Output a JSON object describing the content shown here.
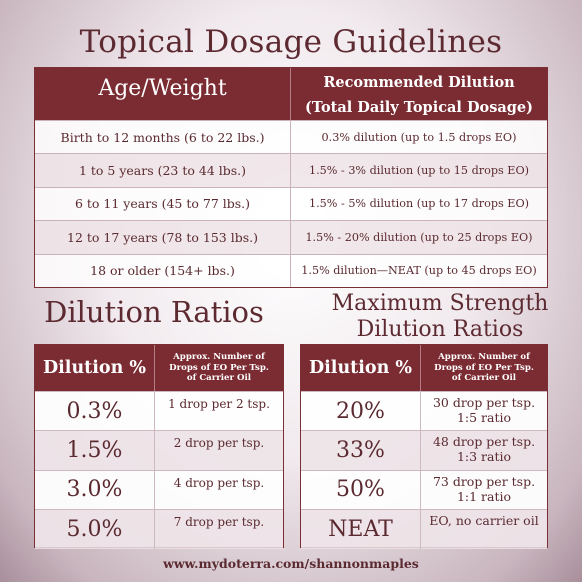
{
  "title": "Topical Dosage Guidelines",
  "topical": {
    "header_age": "Age/Weight",
    "header_dilution_line1": "Recommended Dilution",
    "header_dilution_line2": "(Total Daily Topical Dosage)",
    "rows": [
      {
        "age": "Birth to 12 months (6 to 22 lbs.)",
        "dilution": "0.3% dilution (up to 1.5 drops EO)"
      },
      {
        "age": "1 to 5 years (23 to 44 lbs.)",
        "dilution": "1.5% - 3%  dilution (up to 15 drops EO)"
      },
      {
        "age": "6 to 11 years (45 to 77 lbs.)",
        "dilution": "1.5% - 5%  dilution (up to 17  drops EO)"
      },
      {
        "age": "12 to 17 years (78 to 153 lbs.)",
        "dilution": "1.5% - 20% dilution (up to 25 drops EO)"
      },
      {
        "age": "18 or older (154+ lbs.)",
        "dilution": "1.5% dilution—NEAT (up to 45 drops EO)"
      }
    ]
  },
  "dilution_ratios": {
    "heading": "Dilution Ratios",
    "header_pct": "Dilution %",
    "header_drops_l1": "Approx. Number of",
    "header_drops_l2": "Drops of EO Per Tsp.",
    "header_drops_l3": "of Carrier Oil",
    "rows": [
      {
        "pct": "0.3%",
        "drops": "1 drop per 2 tsp."
      },
      {
        "pct": "1.5%",
        "drops": "2 drop per tsp."
      },
      {
        "pct": "3.0%",
        "drops": "4 drop per tsp."
      },
      {
        "pct": "5.0%",
        "drops": "7 drop per tsp."
      }
    ]
  },
  "max_strength": {
    "heading_line1": "Maximum Strength",
    "heading_line2": "Dilution Ratios",
    "header_pct": "Dilution %",
    "header_drops_l1": "Approx. Number of",
    "header_drops_l2": "Drops of EO Per Tsp.",
    "header_drops_l3": "of Carrier Oil",
    "rows": [
      {
        "pct": "20%",
        "drops_l1": "30 drop per tsp.",
        "drops_l2": "1:5 ratio"
      },
      {
        "pct": "33%",
        "drops_l1": "48 drop per tsp.",
        "drops_l2": "1:3 ratio"
      },
      {
        "pct": "50%",
        "drops_l1": "73 drop per tsp.",
        "drops_l2": "1:1 ratio"
      },
      {
        "pct": "NEAT",
        "drops_l1": "EO, no carrier oil",
        "drops_l2": ""
      }
    ]
  },
  "footer": "www.mydoterra.com/shannonmaples",
  "colors": {
    "accent": "#7b2c33",
    "text": "#5a2a30"
  }
}
